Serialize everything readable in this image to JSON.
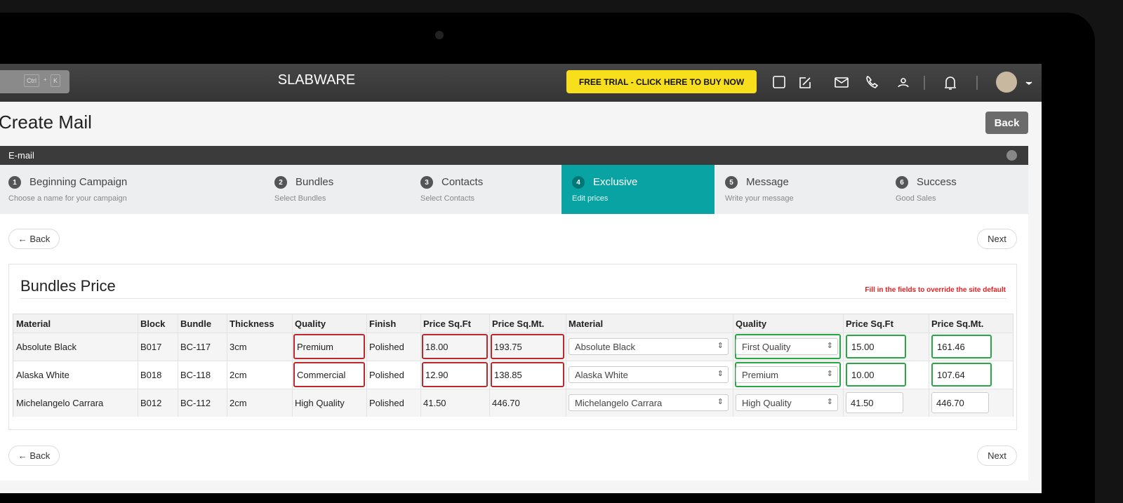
{
  "header": {
    "search_keys": [
      "Ctrl",
      "+",
      "K"
    ],
    "brand": "SLABWARE",
    "trial_button": "FREE TRIAL - CLICK HERE TO BUY NOW"
  },
  "page": {
    "title": "Create Mail",
    "back": "Back"
  },
  "panel": {
    "title": "E-mail"
  },
  "steps": [
    {
      "number": "1",
      "label": "Beginning Campaign",
      "sub": "Choose a name for your campaign"
    },
    {
      "number": "2",
      "label": "Bundles",
      "sub": "Select Bundles"
    },
    {
      "number": "3",
      "label": "Contacts",
      "sub": "Select Contacts"
    },
    {
      "number": "4",
      "label": "Exclusive",
      "sub": "Edit prices"
    },
    {
      "number": "5",
      "label": "Message",
      "sub": "Write your message"
    },
    {
      "number": "6",
      "label": "Success",
      "sub": "Good Sales"
    }
  ],
  "nav": {
    "back": "← Back",
    "next": "Next"
  },
  "section": {
    "title": "Bundles Price",
    "note": "Fill in the fields to override the site default"
  },
  "table": {
    "columns": [
      "Material",
      "Block",
      "Bundle",
      "Thickness",
      "Quality",
      "Finish",
      "Price Sq.Ft",
      "Price Sq.Mt.",
      "Material",
      "Quality",
      "Price Sq.Ft",
      "Price Sq.Mt."
    ],
    "rows": [
      [
        "Absolute Black",
        "B017",
        "BC-117",
        "3cm",
        "Premium",
        "Polished",
        "18.00",
        "193.75",
        "Absolute Black",
        "First Quality",
        "15.00",
        "161.46"
      ],
      [
        "Alaska White",
        "B018",
        "BC-118",
        "2cm",
        "Commercial",
        "Polished",
        "12.90",
        "138.85",
        "Alaska White",
        "Premium",
        "10.00",
        "107.64"
      ],
      [
        "Michelangelo Carrara",
        "B012",
        "BC-112",
        "2cm",
        "High Quality",
        "Polished",
        "41.50",
        "446.70",
        "Michelangelo Carrara",
        "High Quality",
        "41.50",
        "446.70"
      ]
    ]
  }
}
